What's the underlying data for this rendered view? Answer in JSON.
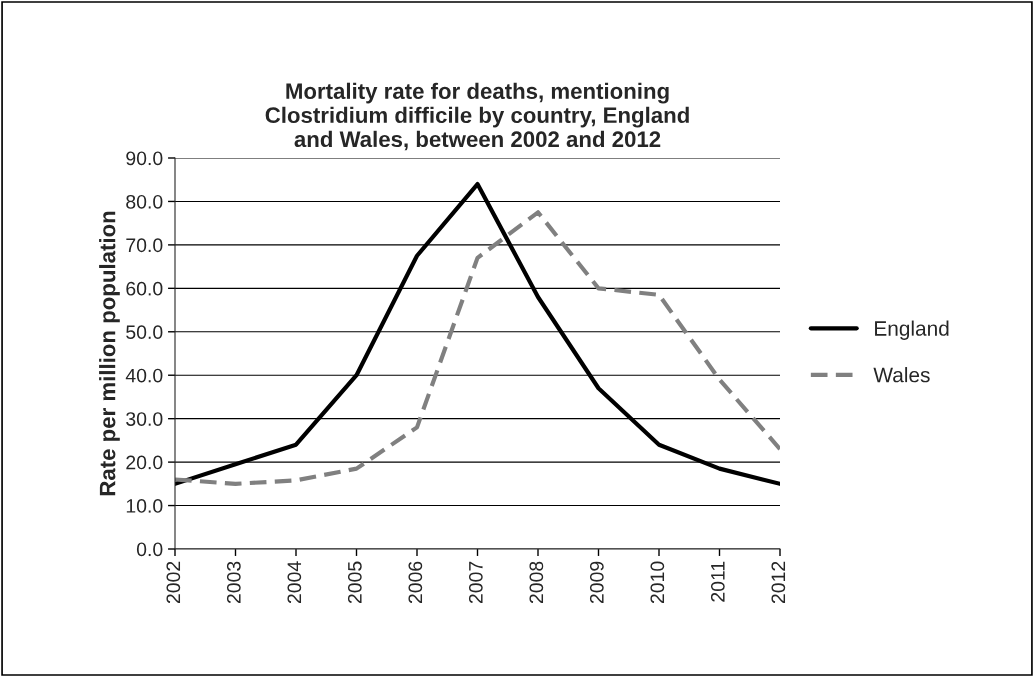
{
  "chart_data": {
    "type": "line",
    "title": "Mortality rate for deaths, mentioning\nClostridium difficile by country, England\nand Wales, between 2002 and 2012",
    "ylabel": "Rate per million population",
    "categories": [
      "2002",
      "2003",
      "2004",
      "2005",
      "2006",
      "2007",
      "2008",
      "2009",
      "2010",
      "2011",
      "2012"
    ],
    "series": [
      {
        "name": "England",
        "color": "#000000",
        "line_style": "solid",
        "values": [
          15.0,
          19.5,
          24.0,
          40.0,
          67.5,
          84.0,
          58.0,
          37.0,
          24.0,
          18.5,
          15.0
        ]
      },
      {
        "name": "Wales",
        "color": "#808080",
        "line_style": "dashed",
        "values": [
          16.0,
          15.0,
          15.8,
          18.5,
          28.0,
          67.0,
          77.5,
          60.0,
          58.5,
          39.0,
          23.0
        ]
      }
    ],
    "ylim": [
      0,
      90
    ],
    "yticks": [
      {
        "value": 0,
        "label": "0.0"
      },
      {
        "value": 10,
        "label": "10.0"
      },
      {
        "value": 20,
        "label": "20.0"
      },
      {
        "value": 30,
        "label": "30.0"
      },
      {
        "value": 40,
        "label": "40.0"
      },
      {
        "value": 50,
        "label": "50.0"
      },
      {
        "value": 60,
        "label": "60.0"
      },
      {
        "value": 70,
        "label": "70.0"
      },
      {
        "value": 80,
        "label": "80.0"
      },
      {
        "value": 90,
        "label": "90.0"
      }
    ],
    "grid": "y",
    "legend": "right",
    "marker": "none"
  }
}
